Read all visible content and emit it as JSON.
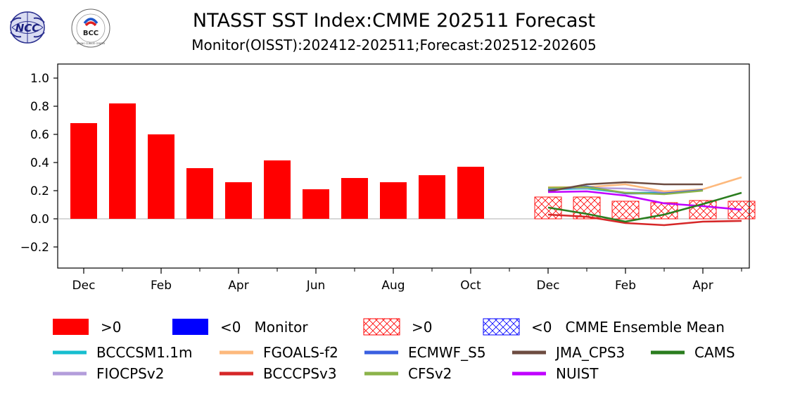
{
  "logos": {
    "left_text": "NCC",
    "right_text": "BCC",
    "right_ring_text": "BEIJING CLIMATE CENTER"
  },
  "chart_data": {
    "type": "bar",
    "title": "NTASST SST Index:CMME 202511 Forecast",
    "subtitle": "Monitor(OISST):202412-202511;Forecast:202512-202605",
    "ylim": [
      -0.35,
      1.1
    ],
    "yticks": [
      -0.2,
      0.0,
      0.2,
      0.4,
      0.6,
      0.8,
      1.0
    ],
    "ytick_labels": [
      "−0.2",
      "0.0",
      "0.2",
      "0.4",
      "0.6",
      "0.8",
      "1.0"
    ],
    "xtick_labels": [
      "Dec",
      "Feb",
      "Apr",
      "Jun",
      "Aug",
      "Oct",
      "Dec",
      "Feb",
      "Apr"
    ],
    "xtick_indices": [
      0,
      2,
      4,
      6,
      8,
      10,
      12,
      14,
      16
    ],
    "minor_tick_indices": [
      1,
      3,
      5,
      7,
      9,
      11,
      13,
      15,
      17
    ],
    "monitor": {
      "indices": [
        0,
        1,
        2,
        3,
        4,
        5,
        6,
        7,
        8,
        9,
        10
      ],
      "values": [
        0.68,
        0.82,
        0.6,
        0.36,
        0.26,
        0.415,
        0.21,
        0.29,
        0.26,
        0.31,
        0.37
      ]
    },
    "ensemble_mean": {
      "indices": [
        12,
        13,
        14,
        15,
        16,
        17
      ],
      "values": [
        0.155,
        0.155,
        0.125,
        0.115,
        0.13,
        0.125
      ]
    },
    "series": [
      {
        "name": "BCCCSM1.1m",
        "color": "#17becf",
        "x": [
          12,
          13,
          14,
          15,
          16
        ],
        "values": [
          0.21,
          0.215,
          0.185,
          0.185,
          0.205
        ]
      },
      {
        "name": "FIOCPSv2",
        "color": "#b39ddb",
        "x": [
          12,
          13,
          14,
          15,
          16
        ],
        "values": [
          0.215,
          0.22,
          0.215,
          0.19,
          0.205
        ]
      },
      {
        "name": "FGOALS-f2",
        "color": "#fdb97d",
        "x": [
          12,
          13,
          14,
          15,
          16,
          17
        ],
        "values": [
          0.225,
          0.225,
          0.245,
          0.195,
          0.21,
          0.295
        ]
      },
      {
        "name": "BCCCPSv3",
        "color": "#d62728",
        "x": [
          12,
          13,
          14,
          15,
          16,
          17
        ],
        "values": [
          0.03,
          0.015,
          -0.03,
          -0.045,
          -0.02,
          -0.015
        ]
      },
      {
        "name": "ECMWF_S5",
        "color": "#3a5fe0",
        "x": [
          12,
          13,
          14,
          15,
          16
        ],
        "values": [
          0.205,
          0.23,
          0.18,
          0.18,
          0.205
        ]
      },
      {
        "name": "CFSv2",
        "color": "#8bb34a",
        "x": [
          12,
          13,
          14,
          15,
          16
        ],
        "values": [
          0.22,
          0.225,
          0.185,
          0.175,
          0.2
        ]
      },
      {
        "name": "JMA_CPS3",
        "color": "#6d4c41",
        "x": [
          12,
          13,
          14,
          15,
          16
        ],
        "values": [
          0.195,
          0.245,
          0.26,
          0.245,
          0.245
        ]
      },
      {
        "name": "NUIST",
        "color": "#c000ff",
        "x": [
          12,
          13,
          14,
          15,
          16,
          17
        ],
        "values": [
          0.19,
          0.195,
          0.165,
          0.11,
          0.09,
          0.065
        ]
      },
      {
        "name": "CAMS",
        "color": "#2a7d1e",
        "x": [
          12,
          13,
          14,
          15,
          16,
          17
        ],
        "values": [
          0.08,
          0.035,
          -0.02,
          0.03,
          0.105,
          0.185
        ]
      }
    ],
    "colors": {
      "positive": "#ff0000",
      "negative": "#0000ff"
    },
    "legend_position": "bottom",
    "legend_patches": [
      {
        "label": ">0",
        "style": "solid-positive"
      },
      {
        "label": "<0   Monitor",
        "style": "solid-negative"
      },
      {
        "label": ">0",
        "style": "hatch-positive"
      },
      {
        "label": "<0   CMME Ensemble Mean",
        "style": "hatch-negative"
      }
    ]
  }
}
